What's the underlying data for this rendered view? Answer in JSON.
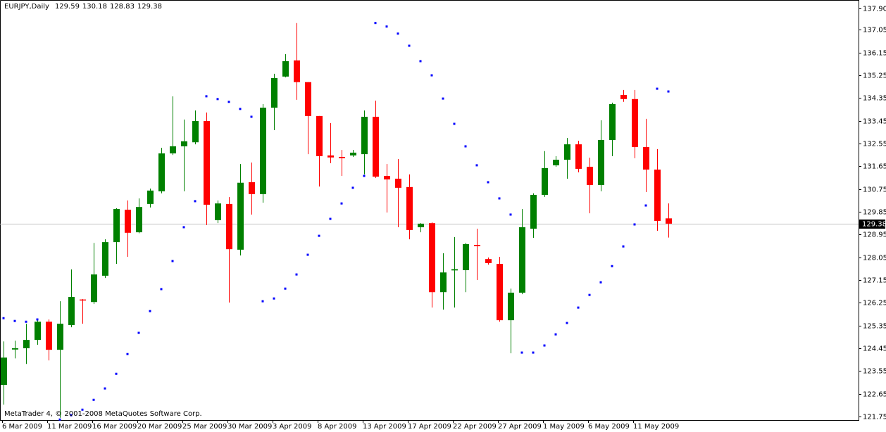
{
  "chart_data": {
    "type": "candlestick",
    "title": "EURJPY,Daily",
    "footer": "MetaTrader 4, © 2001-2008 MetaQuotes Software Corp.",
    "categories": [
      "6 Mar 2009",
      null,
      null,
      null,
      "11 Mar 2009",
      null,
      null,
      null,
      "16 Mar 2009",
      null,
      null,
      null,
      "20 Mar 2009",
      null,
      null,
      null,
      "25 Mar 2009",
      null,
      null,
      null,
      "30 Mar 2009",
      null,
      null,
      null,
      "3 Apr 2009",
      null,
      null,
      null,
      "8 Apr 2009",
      null,
      null,
      null,
      "13 Apr 2009",
      null,
      null,
      null,
      "17 Apr 2009",
      null,
      null,
      null,
      "22 Apr 2009",
      null,
      null,
      null,
      "27 Apr 2009",
      null,
      null,
      null,
      "1 May 2009",
      null,
      null,
      null,
      "6 May 2009",
      null,
      null,
      null,
      "11 May 2009",
      null,
      null,
      null
    ],
    "open": [
      123.0,
      124.4,
      124.45,
      124.78,
      125.5,
      124.39,
      125.37,
      126.38,
      126.28,
      127.32,
      128.65,
      129.93,
      129.04,
      130.16,
      130.66,
      132.16,
      132.44,
      132.6,
      133.44,
      129.52,
      130.16,
      128.35,
      131.02,
      130.55,
      133.97,
      135.2,
      135.84,
      134.98,
      133.64,
      132.08,
      132.02,
      132.08,
      132.13,
      133.61,
      131.27,
      131.16,
      130.83,
      129.24,
      129.4,
      126.67,
      127.53,
      127.54,
      128.54,
      127.98,
      127.79,
      125.56,
      126.65,
      129.18,
      130.52,
      131.69,
      131.91,
      132.52,
      131.63,
      130.91,
      132.69,
      134.47,
      134.31,
      132.41,
      131.52,
      129.59
    ],
    "high": [
      124.72,
      124.75,
      125.42,
      125.62,
      125.59,
      126.31,
      127.57,
      126.4,
      128.62,
      128.76,
      129.99,
      130.3,
      130.38,
      130.77,
      132.38,
      134.42,
      133.5,
      133.86,
      133.78,
      130.3,
      130.43,
      131.74,
      131.8,
      134.11,
      135.31,
      136.09,
      137.32,
      134.98,
      133.64,
      133.36,
      132.3,
      132.3,
      133.86,
      134.25,
      131.74,
      131.94,
      131.33,
      129.4,
      129.43,
      128.21,
      128.85,
      128.62,
      129.18,
      128.04,
      128.07,
      126.81,
      129.96,
      130.58,
      132.25,
      132.05,
      132.77,
      132.66,
      131.99,
      133.47,
      134.17,
      134.67,
      134.67,
      133.53,
      132.33,
      130.18
    ],
    "low": [
      122.22,
      124.05,
      123.83,
      124.59,
      123.97,
      121.7,
      125.28,
      125.42,
      126.2,
      127.23,
      127.79,
      128.07,
      129.0,
      130.02,
      130.58,
      132.1,
      130.66,
      132.52,
      129.32,
      129.4,
      126.26,
      128.12,
      129.74,
      130.21,
      133.08,
      135.17,
      134.28,
      132.13,
      130.85,
      131.77,
      131.27,
      132.02,
      131.33,
      131.19,
      129.82,
      129.24,
      128.76,
      129.04,
      126.06,
      125.98,
      126.06,
      126.67,
      127.15,
      127.76,
      125.5,
      124.25,
      126.59,
      128.82,
      130.44,
      131.63,
      131.16,
      131.41,
      129.79,
      130.66,
      132.05,
      134.2,
      131.97,
      130.63,
      129.1,
      128.83
    ],
    "close": [
      124.08,
      124.45,
      124.78,
      125.5,
      124.39,
      125.42,
      126.48,
      126.34,
      127.37,
      128.65,
      129.96,
      129.02,
      130.04,
      130.69,
      132.16,
      132.44,
      132.64,
      133.44,
      130.13,
      130.18,
      128.37,
      131.0,
      130.55,
      133.97,
      135.14,
      135.81,
      134.98,
      133.64,
      132.05,
      132.0,
      131.97,
      132.19,
      133.61,
      131.24,
      131.13,
      130.8,
      129.13,
      129.38,
      126.67,
      127.45,
      127.58,
      128.57,
      128.49,
      127.82,
      125.56,
      126.65,
      129.24,
      130.52,
      131.58,
      131.91,
      132.52,
      131.55,
      130.91,
      132.69,
      134.11,
      134.31,
      132.41,
      131.52,
      129.49,
      129.38
    ],
    "dots": [
      125.64,
      125.53,
      125.5,
      125.59,
      null,
      121.63,
      121.8,
      122.02,
      122.41,
      122.86,
      123.44,
      124.22,
      125.06,
      125.92,
      126.79,
      127.9,
      129.24,
      130.27,
      134.42,
      134.31,
      134.2,
      133.92,
      133.61,
      126.31,
      126.42,
      126.81,
      127.37,
      128.15,
      128.9,
      129.57,
      130.18,
      130.8,
      131.27,
      137.32,
      137.18,
      136.9,
      136.42,
      135.81,
      135.25,
      134.33,
      133.33,
      132.44,
      131.69,
      131.02,
      130.38,
      129.74,
      124.28,
      124.28,
      124.56,
      125.0,
      125.45,
      126.06,
      126.56,
      127.06,
      127.7,
      128.48,
      129.35,
      130.1,
      134.72,
      134.61
    ],
    "up_color": "#008000",
    "down_color": "#ff0000",
    "dot_color": "#0000ff",
    "price_line_color": "#c0c0c0",
    "ylim": [
      121.61,
      138.23
    ],
    "yticks": [
      {
        "value": 137.9,
        "label": "137.90"
      },
      137.05,
      136.15,
      135.25,
      134.35,
      133.45,
      132.55,
      131.65,
      130.75,
      129.85,
      128.95,
      128.05,
      127.15,
      126.25,
      125.35,
      124.45,
      123.55,
      122.65,
      121.75
    ]
  }
}
